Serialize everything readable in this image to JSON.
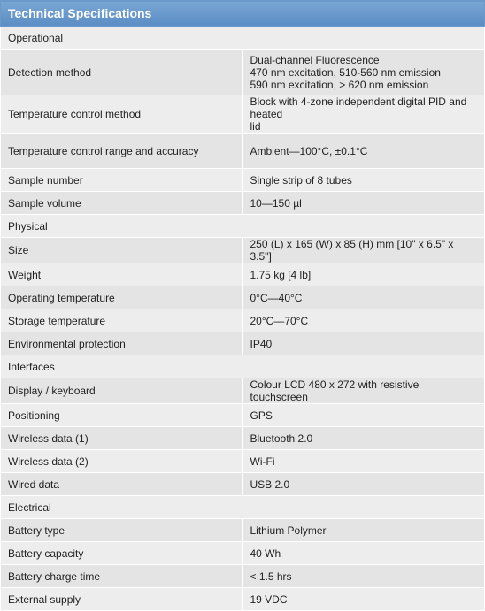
{
  "title": "Technical Specifications",
  "rows": [
    {
      "type": "section",
      "label": "Operational"
    },
    {
      "type": "spec",
      "label": "Detection method",
      "lines": [
        "Dual-channel Fluorescence",
        "470 nm excitation, 510-560 nm emission",
        "590 nm excitation, > 620 nm emission"
      ]
    },
    {
      "type": "spec",
      "label": "Temperature control method",
      "lines": [
        "Block with 4-zone independent digital PID and heated",
        "lid"
      ]
    },
    {
      "type": "spec",
      "label": "Temperature control range and accuracy",
      "lines": [
        "Ambient—100°C, ±0.1°C"
      ]
    },
    {
      "type": "spec",
      "label": "Sample number",
      "lines": [
        "Single strip of 8 tubes"
      ]
    },
    {
      "type": "spec",
      "label": "Sample volume",
      "lines": [
        "10—150 µl"
      ]
    },
    {
      "type": "section",
      "label": "Physical"
    },
    {
      "type": "spec",
      "label": "Size",
      "lines": [
        "250 (L) x 165 (W) x 85 (H) mm [10\" x 6.5\" x 3.5\"]"
      ]
    },
    {
      "type": "spec",
      "label": "Weight",
      "lines": [
        "1.75 kg [4 lb]"
      ]
    },
    {
      "type": "spec",
      "label": "Operating temperature",
      "lines": [
        "0°C—40°C"
      ]
    },
    {
      "type": "spec",
      "label": "Storage temperature",
      "lines": [
        "20°C—70°C"
      ]
    },
    {
      "type": "spec",
      "label": "Environmental protection",
      "lines": [
        "IP40"
      ]
    },
    {
      "type": "section",
      "label": "Interfaces"
    },
    {
      "type": "spec",
      "label": "Display / keyboard",
      "lines": [
        "Colour LCD 480 x 272 with resistive touchscreen"
      ]
    },
    {
      "type": "spec",
      "label": "Positioning",
      "lines": [
        "GPS"
      ]
    },
    {
      "type": "spec",
      "label": "Wireless data (1)",
      "lines": [
        "Bluetooth 2.0"
      ]
    },
    {
      "type": "spec",
      "label": "Wireless data (2)",
      "lines": [
        "Wi-Fi"
      ]
    },
    {
      "type": "spec",
      "label": "Wired data",
      "lines": [
        "USB 2.0"
      ]
    },
    {
      "type": "section",
      "label": "Electrical"
    },
    {
      "type": "spec",
      "label": "Battery type",
      "lines": [
        "Lithium Polymer"
      ]
    },
    {
      "type": "spec",
      "label": "Battery capacity",
      "lines": [
        "40 Wh"
      ]
    },
    {
      "type": "spec",
      "label": "Battery charge time",
      "lines": [
        "< 1.5 hrs"
      ]
    },
    {
      "type": "spec",
      "label": "External supply",
      "lines": [
        "19 VDC"
      ]
    }
  ],
  "colors": {
    "header_bg": "#5f92c9",
    "header_text": "#ffffff",
    "row_light": "#ededed",
    "row_dark": "#e4e4e4",
    "text": "#222222"
  }
}
